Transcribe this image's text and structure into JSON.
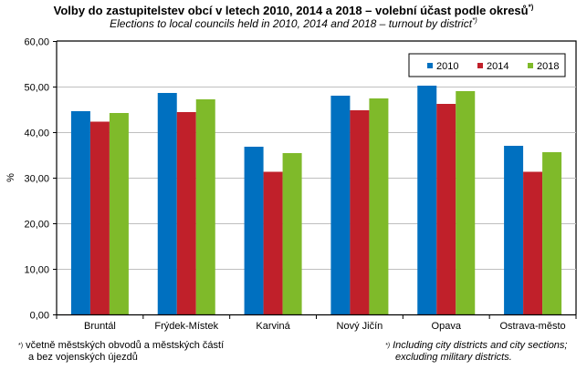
{
  "chart_data": {
    "type": "bar",
    "title": "Volby do zastupitelstev obcí v letech 2010, 2014 a 2018 – volební účast podle okresů",
    "title_footnote_mark": "*)",
    "subtitle": "Elections to local councils held in 2010, 2014 and 2018 – turnout by district",
    "subtitle_footnote_mark": "*)",
    "xlabel": "",
    "ylabel": "%",
    "ylim": [
      0,
      60
    ],
    "yticks": [
      0,
      10,
      20,
      30,
      40,
      50,
      60
    ],
    "ytick_labels": [
      "0,00",
      "10,00",
      "20,00",
      "30,00",
      "40,00",
      "50,00",
      "60,00"
    ],
    "grid": true,
    "legend_position": "top-right",
    "categories": [
      "Bruntál",
      "Frýdek-Místek",
      "Karviná",
      "Nový Jičín",
      "Opava",
      "Ostrava-město"
    ],
    "series": [
      {
        "name": "2010",
        "color": "#0070C0",
        "values": [
          44.6,
          48.6,
          36.8,
          48.0,
          50.2,
          37.0
        ]
      },
      {
        "name": "2014",
        "color": "#C0202A",
        "values": [
          42.3,
          44.4,
          31.3,
          44.8,
          46.2,
          31.3
        ]
      },
      {
        "name": "2018",
        "color": "#7FBA2A",
        "values": [
          44.2,
          47.2,
          35.4,
          47.4,
          49.0,
          35.6
        ]
      }
    ]
  },
  "footnotes": {
    "cz_mark": "*)",
    "cz_line1": "včetně městských obvodů a městských částí",
    "cz_line2": "a bez vojenských újezdů",
    "en_mark": "*)",
    "en_line1": "Including city districts and city sections;",
    "en_line2": "excluding military districts."
  }
}
